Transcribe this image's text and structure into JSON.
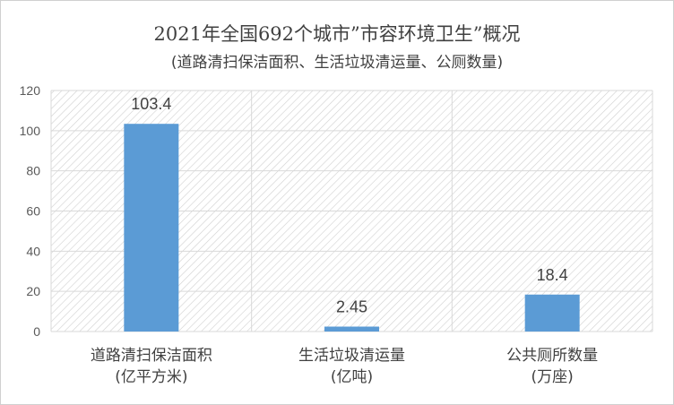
{
  "chart_data": {
    "type": "bar",
    "title": "2021年全国692个城市”市容环境卫生”概况",
    "subtitle": "(道路清扫保洁面积、生活垃圾清运量、公厕数量)",
    "categories": [
      [
        "道路清扫保洁面积",
        "(亿平方米)"
      ],
      [
        "生活垃圾清运量",
        "(亿吨)"
      ],
      [
        "公共厕所数量",
        "(万座)"
      ]
    ],
    "values": [
      103.4,
      2.45,
      18.4
    ],
    "data_labels": [
      "103.4",
      "2.45",
      "18.4"
    ],
    "ylim": [
      0,
      120
    ],
    "yticks": [
      0,
      20,
      40,
      60,
      80,
      100,
      120
    ],
    "grid": true,
    "colors": {
      "bar": "#5b9bd5",
      "grid": "#d9d9d9",
      "hatch": "#d0d0d0"
    }
  }
}
